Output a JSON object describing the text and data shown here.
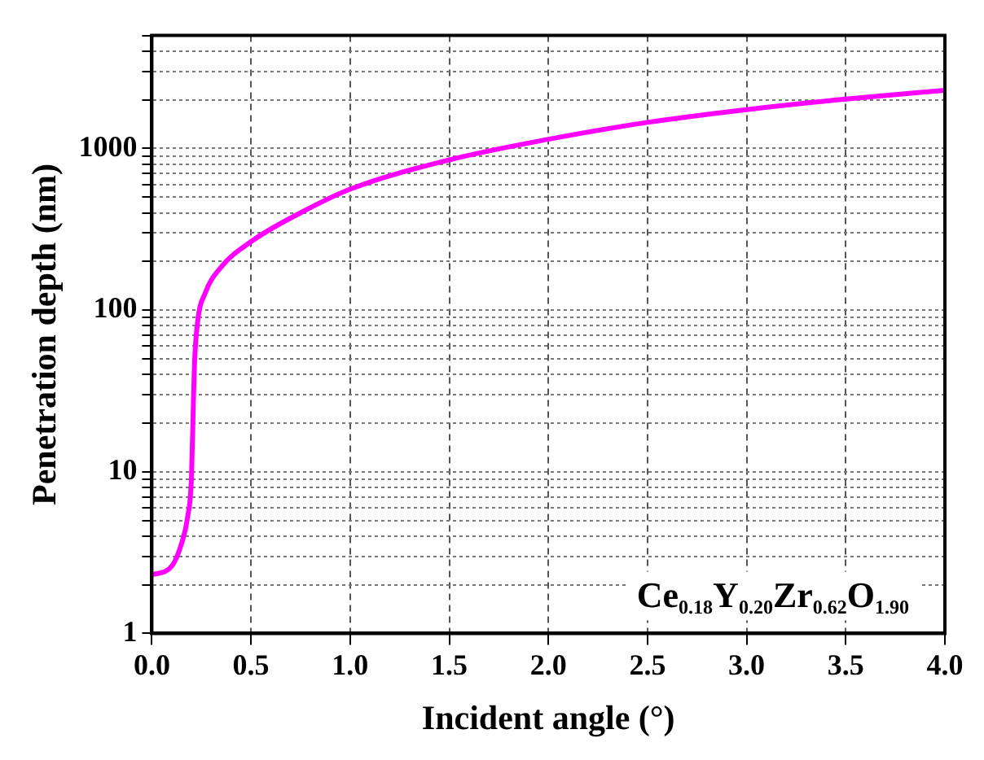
{
  "chart_data": {
    "type": "line",
    "xlabel": "Incident angle (°)",
    "ylabel": "Penetration depth (nm)",
    "x": [
      0,
      0.1,
      0.15,
      0.18,
      0.2,
      0.21,
      0.215,
      0.23,
      0.27,
      0.35,
      0.5,
      0.75,
      1.0,
      1.5,
      2.0,
      2.5,
      3.0,
      3.5,
      4.0
    ],
    "series": [
      {
        "color": "#ff00ff",
        "values": [
          2.3,
          2.6,
          3.6,
          5.2,
          9.3,
          28,
          46,
          83,
          128,
          185,
          265,
          400,
          560,
          850,
          1140,
          1450,
          1740,
          2020,
          2290
        ]
      }
    ],
    "xlim": [
      0,
      4
    ],
    "xticks": [
      {
        "value": 0,
        "label": "0.0"
      },
      {
        "value": 0.5,
        "label": "0.5"
      },
      {
        "value": 1,
        "label": "1.0"
      },
      {
        "value": 1.5,
        "label": "1.5"
      },
      {
        "value": 2,
        "label": "2.0"
      },
      {
        "value": 2.5,
        "label": "2.5"
      },
      {
        "value": 3,
        "label": "3.0"
      },
      {
        "value": 3.5,
        "label": "3.5"
      },
      {
        "value": 4,
        "label": "4.0"
      }
    ],
    "ylim": [
      1,
      5000
    ],
    "log": "y",
    "yticks": [
      1,
      {
        "value": 2,
        "label": null
      },
      {
        "value": 3,
        "label": null
      },
      {
        "value": 4,
        "label": null
      },
      {
        "value": 5,
        "label": null
      },
      {
        "value": 6,
        "label": null
      },
      {
        "value": 7,
        "label": null
      },
      {
        "value": 8,
        "label": null
      },
      {
        "value": 9,
        "label": null
      },
      10,
      {
        "value": 20,
        "label": null
      },
      {
        "value": 30,
        "label": null
      },
      {
        "value": 40,
        "label": null
      },
      {
        "value": 50,
        "label": null
      },
      {
        "value": 60,
        "label": null
      },
      {
        "value": 70,
        "label": null
      },
      {
        "value": 80,
        "label": null
      },
      {
        "value": 90,
        "label": null
      },
      100,
      {
        "value": 200,
        "label": null
      },
      {
        "value": 300,
        "label": null
      },
      {
        "value": 400,
        "label": null
      },
      {
        "value": 500,
        "label": null
      },
      {
        "value": 600,
        "label": null
      },
      {
        "value": 700,
        "label": null
      },
      {
        "value": 800,
        "label": null
      },
      {
        "value": 900,
        "label": null
      },
      1000,
      {
        "value": 2000,
        "label": null
      },
      {
        "value": 3000,
        "label": null
      },
      {
        "value": 4000,
        "label": null
      },
      {
        "value": 5000,
        "label": null
      }
    ],
    "grid": true,
    "legend": false,
    "marker": "none",
    "line_style": "solid",
    "annotations": [
      "Ce$_{0.18}$Y$_{0.20}$Zr$_{0.62}$O$_{1.90}$"
    ]
  }
}
